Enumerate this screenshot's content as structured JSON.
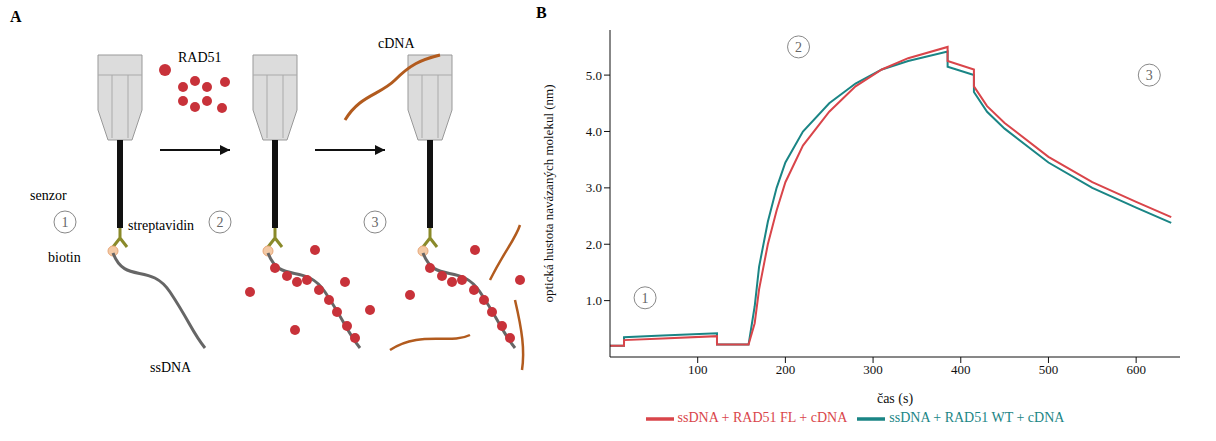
{
  "panel_a": {
    "letter": "A",
    "sensor": "senzor",
    "streptavidin": "streptavidin",
    "biotin": "biotin",
    "ssdna": "ssDNA",
    "rad51": "RAD51",
    "cdna": "cDNA",
    "steps": [
      "1",
      "2",
      "3"
    ]
  },
  "panel_b": {
    "letter": "B"
  },
  "chart_data": {
    "type": "line",
    "x_label": "čas (s)",
    "y_label": "optická hustota navázaných molekul (nm)",
    "x": [
      0,
      16,
      16,
      60,
      122,
      122,
      158,
      165,
      170,
      180,
      190,
      200,
      220,
      250,
      280,
      310,
      340,
      385,
      385,
      415,
      415,
      430,
      450,
      500,
      550,
      600,
      640
    ],
    "series": [
      {
        "name": "ssDNA + RAD51 WT + cDNA",
        "color": "#1a8585",
        "values": [
          0.2,
          0.2,
          0.35,
          0.38,
          0.42,
          0.22,
          0.22,
          0.9,
          1.6,
          2.4,
          3.0,
          3.45,
          4.0,
          4.5,
          4.85,
          5.1,
          5.25,
          5.42,
          5.15,
          5.0,
          4.7,
          4.35,
          4.05,
          3.45,
          3.0,
          2.65,
          2.38
        ]
      },
      {
        "name": "ssDNA + RAD51 FL + cDNA",
        "color": "#d9454a",
        "values": [
          0.2,
          0.2,
          0.3,
          0.33,
          0.37,
          0.22,
          0.22,
          0.6,
          1.2,
          2.0,
          2.6,
          3.1,
          3.75,
          4.35,
          4.8,
          5.1,
          5.3,
          5.5,
          5.25,
          5.1,
          4.8,
          4.45,
          4.15,
          3.55,
          3.1,
          2.75,
          2.48
        ]
      }
    ],
    "xlim": [
      0,
      650
    ],
    "xticks": [
      100,
      200,
      300,
      400,
      500,
      600
    ],
    "ylim": [
      0,
      5.8
    ],
    "yticks": [
      {
        "value": 1,
        "label": "1.0"
      },
      {
        "value": 2,
        "label": "2.0"
      },
      {
        "value": 3,
        "label": "3.0"
      },
      {
        "value": 4,
        "label": "4.0"
      },
      {
        "value": 5,
        "label": "5.0"
      }
    ],
    "annotations": [
      {
        "text": "1",
        "x": 40,
        "y": 1.05
      },
      {
        "text": "2",
        "x": 215,
        "y": 5.5
      },
      {
        "text": "3",
        "x": 615,
        "y": 5.0
      }
    ],
    "legend": "bottom",
    "grid": false
  }
}
